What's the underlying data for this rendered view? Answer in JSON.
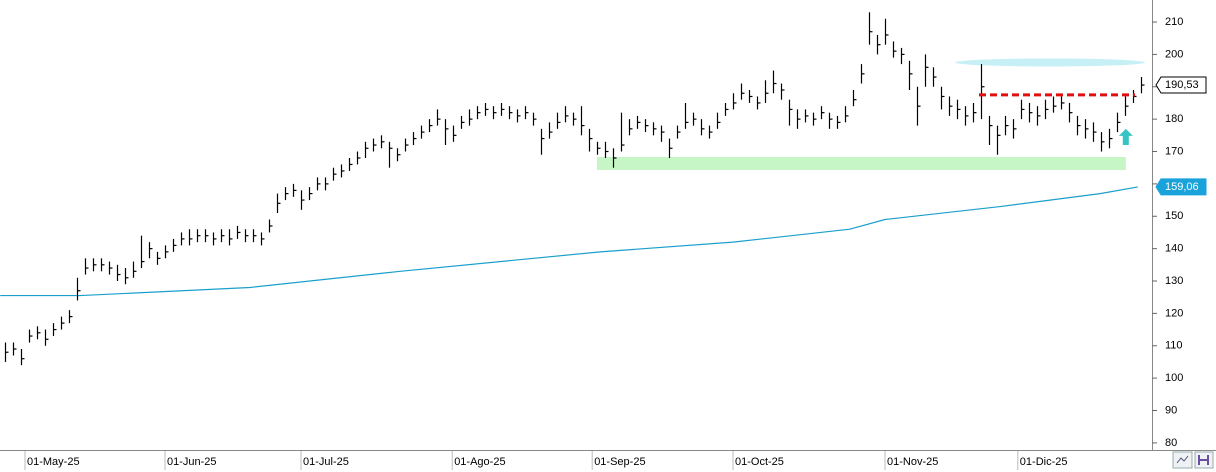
{
  "chart_data": {
    "type": "ohlc",
    "xlim": [
      -0.625,
      143.375
    ],
    "ylim": [
      77.8,
      216.8
    ],
    "yticks": [
      80,
      90,
      100,
      110,
      120,
      130,
      140,
      150,
      160,
      170,
      180,
      190,
      200,
      210
    ],
    "xticks": [
      {
        "value": 2.5,
        "label": "01-May-25"
      },
      {
        "value": 20,
        "label": "01-Jun-25"
      },
      {
        "value": 37,
        "label": "01-Jul-25"
      },
      {
        "value": 55.9,
        "label": "01-Ago-25"
      },
      {
        "value": 73.4,
        "label": "01-Sep-25"
      },
      {
        "value": 91,
        "label": "01-Oct-25"
      },
      {
        "value": 110,
        "label": "01-Nov-25"
      },
      {
        "value": 126.6,
        "label": "01-Dic-25"
      }
    ],
    "color": "#000000",
    "high": [
      111,
      111,
      109,
      115,
      116,
      115,
      117,
      119,
      121,
      131,
      137,
      137,
      137,
      136,
      135,
      134,
      136,
      144,
      142,
      139,
      141,
      143,
      145,
      146,
      146,
      146,
      145,
      146,
      146,
      147,
      146,
      146,
      145,
      149,
      157,
      159,
      160,
      158,
      159,
      162,
      162,
      165,
      166,
      168,
      170,
      173,
      174,
      175,
      173,
      171,
      174,
      176,
      178,
      180,
      183,
      180,
      178,
      181,
      183,
      184,
      185,
      184,
      185,
      184,
      183,
      184,
      182,
      177,
      179,
      182,
      184,
      182,
      184,
      177,
      173,
      173,
      171,
      182,
      180,
      181,
      180,
      179,
      178,
      174,
      178,
      185,
      182,
      180,
      178,
      182,
      185,
      188,
      191,
      189,
      187,
      192,
      195,
      191,
      186,
      183,
      183,
      182,
      184,
      182,
      181,
      184,
      189,
      197,
      213,
      206,
      211,
      204,
      202,
      198,
      190,
      200,
      196,
      190,
      187,
      186,
      184,
      185,
      197,
      181,
      178,
      181,
      180,
      186,
      185,
      184,
      186,
      187,
      187,
      185,
      181,
      180,
      179,
      176,
      177,
      182,
      187,
      189,
      193
    ],
    "low": [
      105,
      107,
      104,
      111,
      112,
      110,
      113,
      115,
      117,
      124,
      132,
      133,
      133,
      132,
      130,
      129,
      131,
      134,
      137,
      135,
      137,
      139,
      141,
      141,
      142,
      142,
      141,
      142,
      141,
      143,
      142,
      142,
      141,
      145,
      151,
      155,
      156,
      152,
      155,
      158,
      158,
      161,
      162,
      164,
      166,
      168,
      170,
      171,
      165,
      167,
      170,
      172,
      174,
      176,
      178,
      172,
      173,
      177,
      178,
      180,
      181,
      180,
      181,
      180,
      179,
      180,
      178,
      169,
      174,
      177,
      179,
      178,
      175,
      170,
      169,
      168,
      165,
      170,
      175,
      177,
      176,
      175,
      173,
      168,
      174,
      177,
      178,
      175,
      174,
      177,
      181,
      183,
      186,
      185,
      183,
      185,
      188,
      186,
      178,
      177,
      179,
      178,
      180,
      177,
      177,
      179,
      184,
      191,
      203,
      200,
      203,
      199,
      197,
      189,
      178,
      190,
      190,
      183,
      181,
      180,
      178,
      179,
      180,
      172,
      169,
      175,
      174,
      180,
      179,
      178,
      180,
      182,
      183,
      179,
      175,
      174,
      173,
      170,
      171,
      176,
      181,
      185,
      188
    ],
    "close": [
      108,
      109,
      106,
      113,
      114,
      112,
      115,
      117,
      119,
      127,
      134,
      135,
      135,
      134,
      132,
      131,
      133,
      136,
      140,
      137,
      139,
      141,
      143,
      143,
      144,
      144,
      143,
      144,
      143,
      145,
      144,
      144,
      143,
      147,
      154,
      157,
      158,
      155,
      157,
      160,
      160,
      163,
      164,
      166,
      168,
      171,
      172,
      173,
      171,
      169,
      172,
      174,
      176,
      178,
      180,
      177,
      175,
      179,
      180,
      182,
      183,
      182,
      183,
      182,
      181,
      182,
      180,
      174,
      176,
      179,
      181,
      180,
      178,
      174,
      171,
      170,
      168,
      172,
      177,
      179,
      178,
      177,
      176,
      171,
      176,
      179,
      180,
      177,
      176,
      179,
      183,
      185,
      188,
      187,
      185,
      188,
      191,
      189,
      183,
      180,
      181,
      180,
      182,
      180,
      179,
      181,
      186,
      194,
      207,
      203,
      206,
      201,
      200,
      194,
      184,
      196,
      193,
      187,
      184,
      183,
      181,
      182,
      190,
      178,
      175,
      178,
      177,
      183,
      182,
      181,
      183,
      184,
      185,
      182,
      178,
      177,
      176,
      173,
      174,
      179,
      184,
      187,
      190.53
    ],
    "moving_average": {
      "color": "#1a9fcc",
      "x": [
        -0.6,
        9.4,
        30.6,
        49.4,
        74.4,
        91,
        105.6,
        110,
        124.4,
        136.9,
        141.6
      ],
      "values": [
        125.5,
        125.5,
        128,
        133,
        139,
        142,
        146,
        149,
        153,
        157,
        159.06
      ]
    },
    "price_labels": [
      {
        "value": 190.53,
        "label": "190,53",
        "color": "#ffffff",
        "text_color": "#000000"
      },
      {
        "value": 159.06,
        "label": "159,06",
        "color": "#1aa3db",
        "text_color": "#ffffff"
      }
    ],
    "annotations": {
      "ellipse": {
        "x": [
          118.75,
          142.5
        ],
        "y": 197.5,
        "color": "#c6f0f6"
      },
      "dashed_line": {
        "x": [
          121.75,
          141.25
        ],
        "y": 187.5,
        "color": "#e01010"
      },
      "zone": {
        "x": [
          74,
          140.1
        ],
        "y": [
          164.3,
          168.3
        ],
        "color": "#c6f5c6"
      },
      "arrow": {
        "x": 140.1,
        "y": [
          172,
          177
        ],
        "color": "#33c4c4"
      }
    }
  }
}
